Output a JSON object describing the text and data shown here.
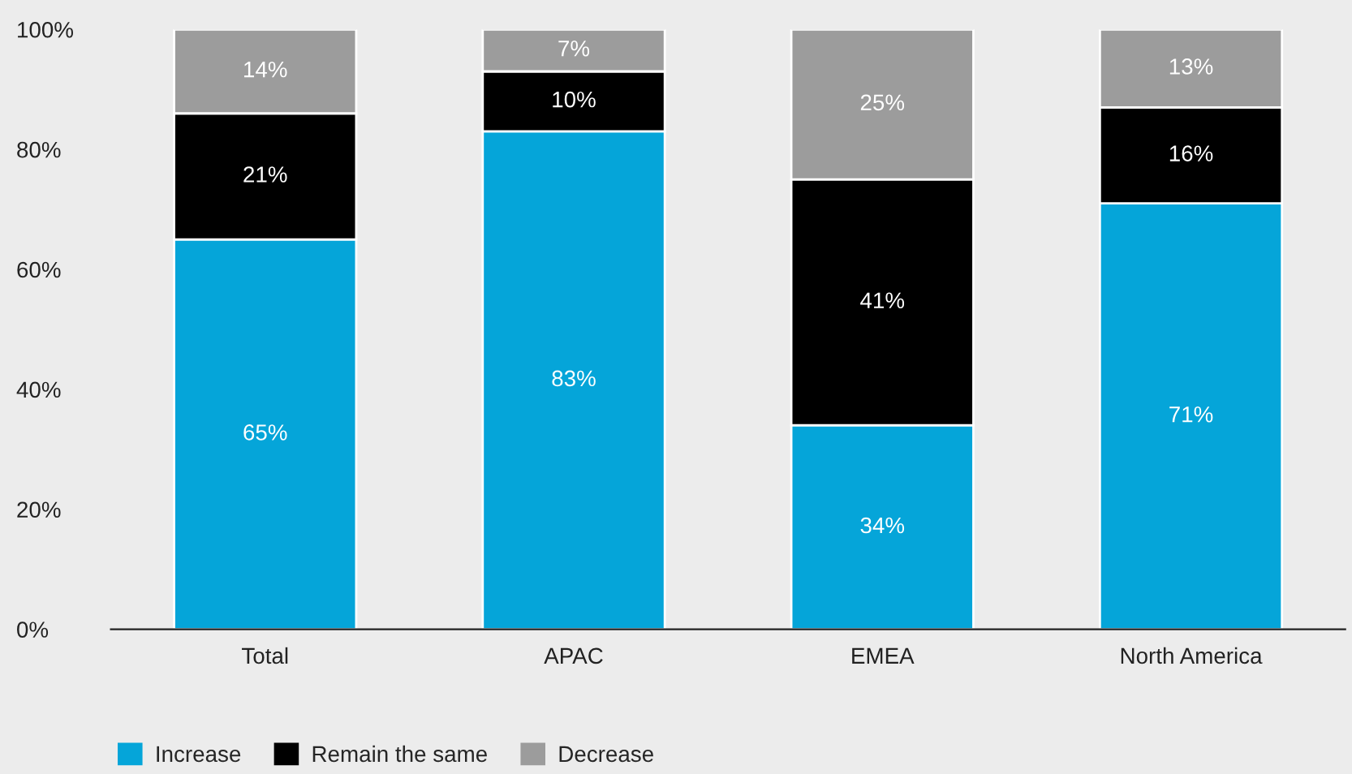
{
  "chart_data": {
    "type": "bar",
    "stacked": true,
    "categories": [
      "Total",
      "APAC",
      "EMEA",
      "North America"
    ],
    "series": [
      {
        "name": "Increase",
        "color": "#05a5d9",
        "values": [
          65,
          83,
          34,
          71
        ],
        "value_labels": [
          "65%",
          "83%",
          "34%",
          "71%"
        ]
      },
      {
        "name": "Remain the same",
        "color": "#000000",
        "values": [
          21,
          10,
          41,
          16
        ],
        "value_labels": [
          "21%",
          "10%",
          "41%",
          "16%"
        ]
      },
      {
        "name": "Decrease",
        "color": "#9c9c9c",
        "values": [
          14,
          7,
          25,
          13
        ],
        "value_labels": [
          "14%",
          "7%",
          "25%",
          "13%"
        ]
      }
    ],
    "ylim": [
      0,
      100
    ],
    "yticks": [
      {
        "value": 0,
        "label": "0%"
      },
      {
        "value": 20,
        "label": "20%"
      },
      {
        "value": 40,
        "label": "40%"
      },
      {
        "value": 60,
        "label": "60%"
      },
      {
        "value": 80,
        "label": "80%"
      },
      {
        "value": 100,
        "label": "100%"
      }
    ],
    "grid": false,
    "legend": "bottom left"
  }
}
